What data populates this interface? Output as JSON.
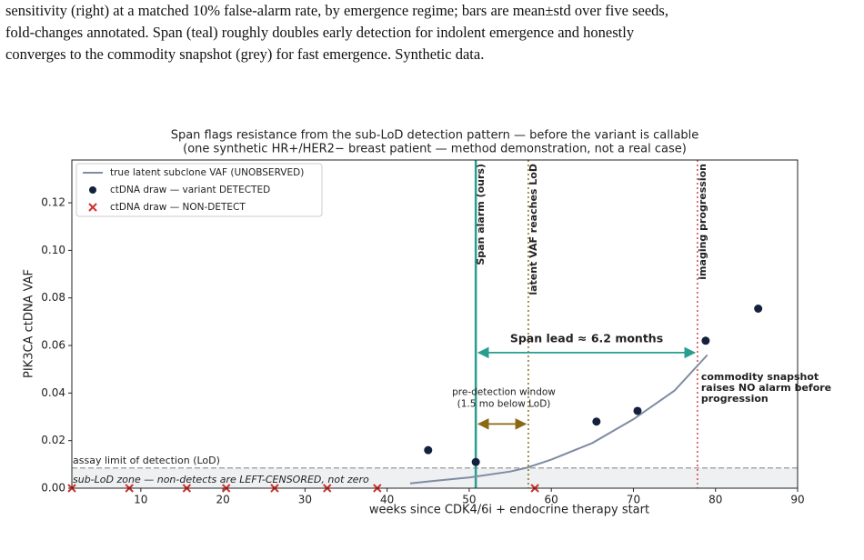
{
  "caption": [
    "sensitivity (right) at a matched 10% false-alarm rate, by emergence regime; bars are mean±std over five seeds,",
    "fold-changes annotated. Span (teal) roughly doubles early detection for indolent emergence and honestly",
    "converges to the commodity snapshot (grey) for fast emergence. Synthetic data."
  ],
  "chart_data": {
    "type": "scatter",
    "title": "Span flags resistance from the sub-LoD detection pattern — before the variant is callable",
    "subtitle": "(one synthetic HR+/HER2− breast patient — method demonstration, not a real case)",
    "x_label": "weeks since CDK4/6i + endocrine therapy start",
    "y_label": "PIK3CA ctDNA VAF",
    "xlim": [
      1.6,
      90
    ],
    "ylim": [
      0,
      0.138
    ],
    "xticks": [
      10,
      20,
      30,
      40,
      50,
      60,
      70,
      80,
      90
    ],
    "yticks": [
      {
        "value": 0,
        "label": "0.00"
      },
      {
        "value": 0.02,
        "label": "0.02"
      },
      {
        "value": 0.04,
        "label": "0.04"
      },
      {
        "value": 0.06,
        "label": "0.06"
      },
      {
        "value": 0.08,
        "label": "0.08"
      },
      {
        "value": 0.1,
        "label": "0.10"
      },
      {
        "value": 0.12,
        "label": "0.12"
      }
    ],
    "legend": "upper left",
    "series": [
      {
        "name": "true latent subclone VAF (UNOBSERVED)",
        "color": "#7f8ca3",
        "mark": "line",
        "x": [
          42.8,
          45,
          50,
          55,
          57,
          60,
          65,
          70,
          75,
          79
        ],
        "values": [
          0.002,
          0.0028,
          0.0045,
          0.007,
          0.0086,
          0.012,
          0.019,
          0.029,
          0.041,
          0.056
        ]
      },
      {
        "name": "ctDNA draw — variant DETECTED",
        "color": "#14213d",
        "mark": "circle",
        "x": [
          45,
          50.8,
          65.5,
          70.5,
          78.8,
          85.2
        ],
        "values": [
          0.016,
          0.011,
          0.028,
          0.0325,
          0.062,
          0.0755
        ]
      },
      {
        "name": "ctDNA draw — NON-DETECT",
        "color": "#d0312d",
        "mark": "x",
        "x": [
          1.6,
          8.6,
          15.6,
          20.4,
          26.3,
          32.7,
          38.8,
          58
        ],
        "values": [
          0,
          0,
          0,
          0,
          0,
          0,
          0,
          0
        ]
      }
    ],
    "hline": {
      "y": 0.0085,
      "label": "assay limit of detection (LoD)",
      "zone_label": "sub-LoD zone — non-detects are LEFT-CENSORED, not zero",
      "color": "#999999"
    },
    "vlines": [
      {
        "x": 50.8,
        "label": "Span alarm (ours)",
        "color": "#2a9d8f",
        "style": "solid"
      },
      {
        "x": 57.2,
        "label": "latent VAF reaches LoD",
        "color": "#8a6d1a",
        "style": "dotted"
      },
      {
        "x": 77.8,
        "label": "imaging progression",
        "color": "#d64545",
        "style": "dotted"
      }
    ],
    "annotations": [
      {
        "lines": [
          "Span lead ≈ 6.2 months"
        ],
        "color": "#2a9d8f",
        "y": 0.057
      },
      {
        "lines": [
          "pre-detection window",
          "(1.5 mo below LoD)"
        ],
        "color": "#8b6914",
        "y": 0.027
      },
      {
        "lines": [
          "commodity snapshot",
          "raises NO alarm before",
          "progression"
        ],
        "color": "#e9a23b"
      }
    ]
  }
}
